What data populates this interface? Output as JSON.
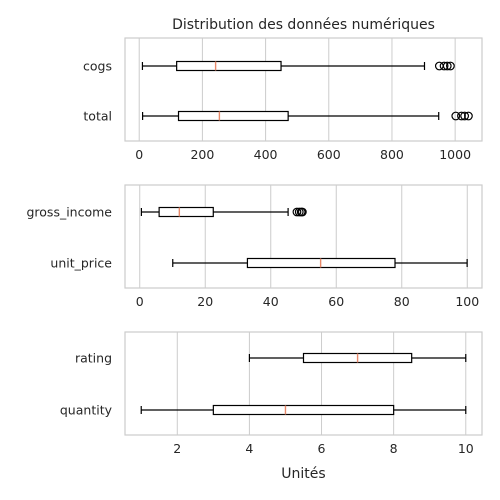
{
  "chart_data": [
    {
      "type": "boxplot",
      "orientation": "horizontal",
      "title": "Distribution des données numériques",
      "xlabel": "",
      "xlim": [
        -45,
        1085
      ],
      "xticks": [
        0,
        200,
        400,
        600,
        800,
        1000
      ],
      "grid": true,
      "series": [
        {
          "name": "cogs",
          "min": 10.17,
          "q1": 118.5,
          "median": 241.8,
          "q3": 448.9,
          "max": 903,
          "outliers": [
            950,
            965,
            975,
            985
          ]
        },
        {
          "name": "total",
          "min": 10.68,
          "q1": 124.4,
          "median": 253.8,
          "q3": 471.4,
          "max": 948,
          "outliers": [
            1002,
            1020,
            1030,
            1042
          ]
        }
      ]
    },
    {
      "type": "boxplot",
      "orientation": "horizontal",
      "title": "",
      "xlabel": "",
      "xlim": [
        -4.5,
        104.5
      ],
      "xticks": [
        0,
        20,
        40,
        60,
        80,
        100
      ],
      "grid": true,
      "series": [
        {
          "name": "gross_income",
          "min": 0.51,
          "q1": 5.92,
          "median": 12.09,
          "q3": 22.45,
          "max": 45.3,
          "outliers": [
            48.0,
            48.7,
            49.3,
            49.65
          ]
        },
        {
          "name": "unit_price",
          "min": 10.08,
          "q1": 32.88,
          "median": 55.23,
          "q3": 77.94,
          "max": 99.96,
          "outliers": []
        }
      ]
    },
    {
      "type": "boxplot",
      "orientation": "horizontal",
      "title": "",
      "xlabel": "Unités",
      "xlim": [
        0.55,
        10.45
      ],
      "xticks": [
        2,
        4,
        6,
        8,
        10
      ],
      "grid": true,
      "series": [
        {
          "name": "rating",
          "min": 4.0,
          "q1": 5.5,
          "median": 7.0,
          "q3": 8.5,
          "max": 10.0,
          "outliers": []
        },
        {
          "name": "quantity",
          "min": 1,
          "q1": 3,
          "median": 5,
          "q3": 8,
          "max": 10,
          "outliers": []
        }
      ]
    }
  ]
}
